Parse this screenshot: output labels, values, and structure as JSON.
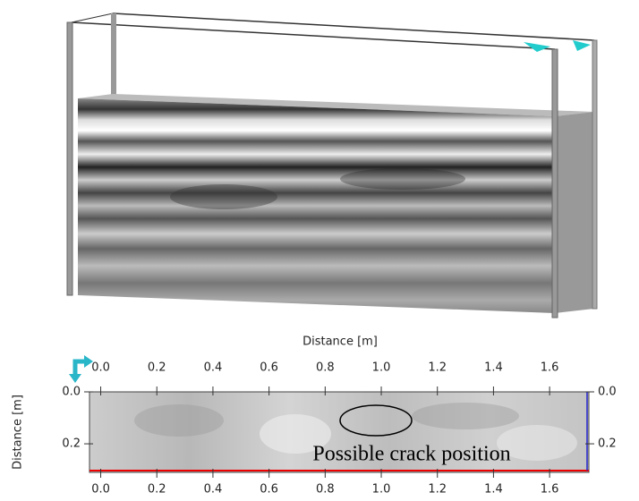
{
  "slice": {
    "x_label": "Distance [m]",
    "y_label": "Distance [m]",
    "xlim": [
      -0.04,
      1.74
    ],
    "xticks": [
      {
        "value": 0,
        "label": "0.0"
      },
      {
        "value": 0.2,
        "label": "0.2"
      },
      {
        "value": 0.4,
        "label": "0.4"
      },
      {
        "value": 0.6,
        "label": "0.6"
      },
      {
        "value": 0.8,
        "label": "0.8"
      },
      {
        "value": 1.0,
        "label": "1.0"
      },
      {
        "value": 1.2,
        "label": "1.2"
      },
      {
        "value": 1.4,
        "label": "1.4"
      },
      {
        "value": 1.6,
        "label": "1.6"
      }
    ],
    "ylim": [
      0,
      0.31
    ],
    "yticks": [
      {
        "value": 0,
        "label": "0.0"
      },
      {
        "value": 0.2,
        "label": "0.2"
      }
    ],
    "annotation": "Possible crack position"
  }
}
